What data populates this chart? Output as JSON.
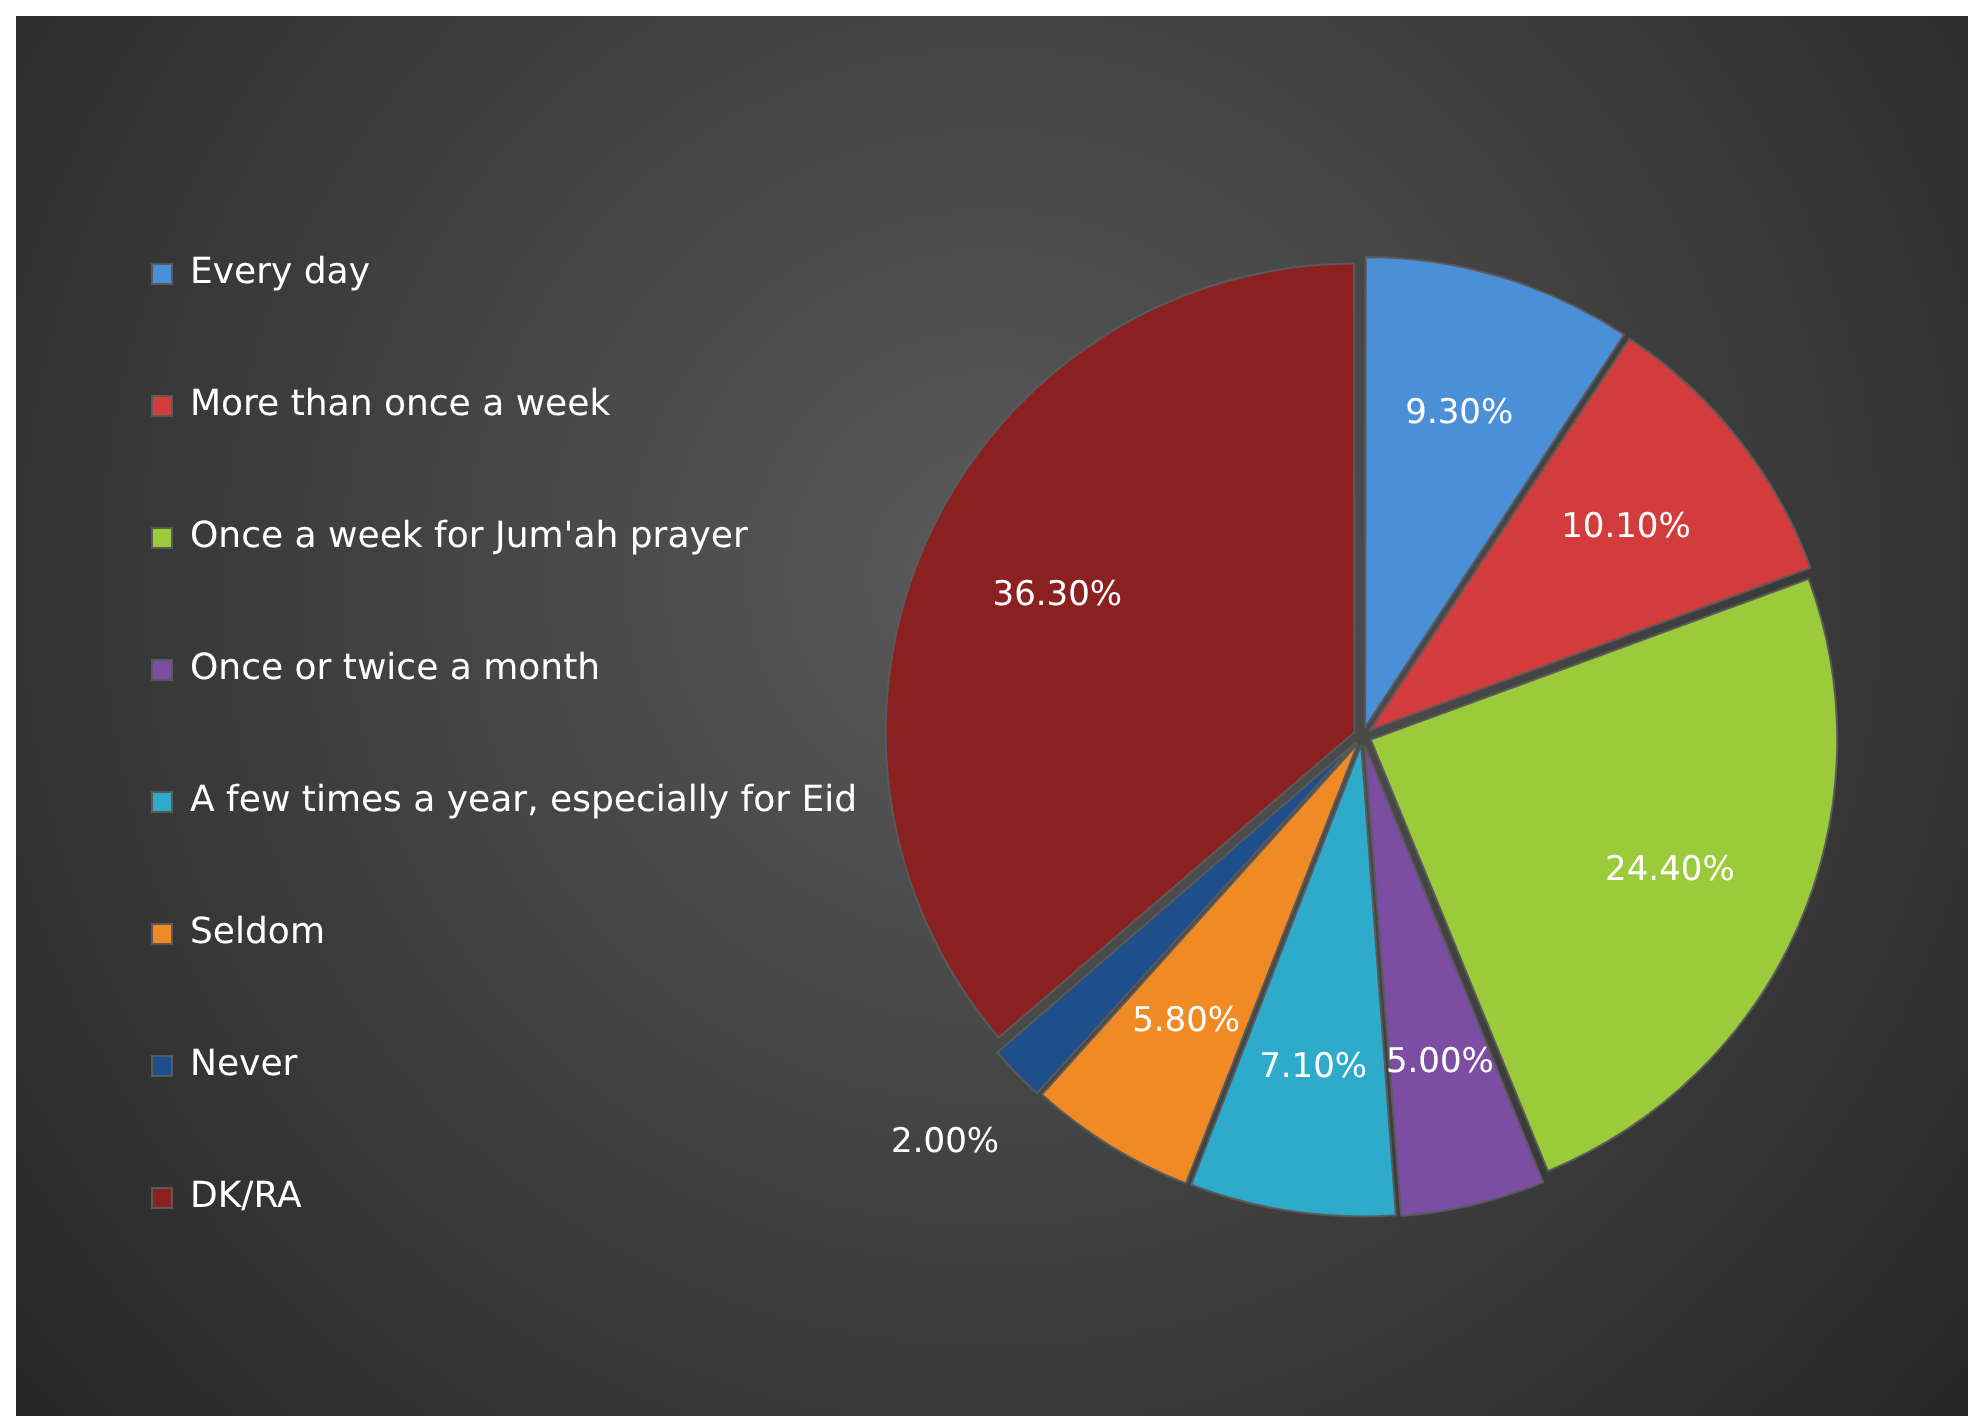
{
  "chart_data": {
    "type": "pie",
    "categories": [
      "Every day",
      "More than once a week",
      "Once a week for Jum'ah prayer",
      "Once or twice a month",
      "A few times a year, especially for Eid",
      "Seldom",
      "Never",
      "DK/RA"
    ],
    "values": [
      9.3,
      10.1,
      24.4,
      5.0,
      7.1,
      5.8,
      2.0,
      36.3
    ],
    "value_labels": [
      "9.30%",
      "10.10%",
      "24.40%",
      "5.00%",
      "7.10%",
      "5.80%",
      "2.00%",
      "36.30%"
    ],
    "colors": [
      "#4a8fd8",
      "#d23c3c",
      "#9bcb3b",
      "#7b4ea3",
      "#2eaacb",
      "#f08a24",
      "#1f4e8c",
      "#8b2020"
    ],
    "legend": "left"
  }
}
